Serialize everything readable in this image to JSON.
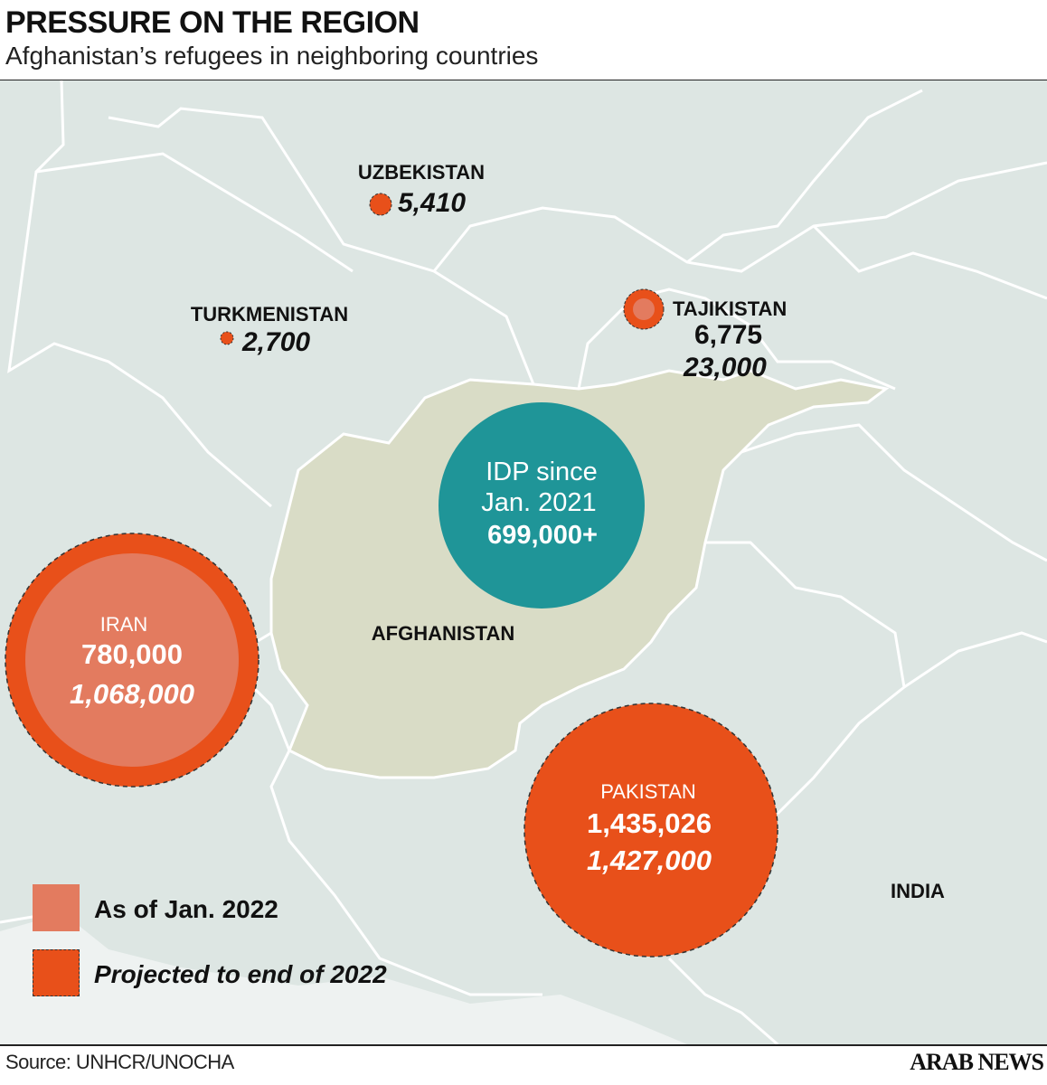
{
  "header": {
    "title": "PRESSURE ON THE REGION",
    "subtitle": "Afghanistan’s refugees in neighboring countries"
  },
  "colors": {
    "sea_land": "#dde6e3",
    "afghanistan": "#d9dcc6",
    "jan_2022": "#e37b5f",
    "projected_2022": "#e8501a",
    "idp": "#1f9598",
    "borders": "#ffffff"
  },
  "countries": {
    "uzbekistan": {
      "name": "UZBEKISTAN",
      "value": "5,410"
    },
    "turkmenistan": {
      "name": "TURKMENISTAN",
      "value": "2,700"
    },
    "tajikistan": {
      "name": "TAJIKISTAN",
      "jan_2022": "6,775",
      "projected": "23,000"
    },
    "afghanistan": {
      "name": "AFGHANISTAN",
      "idp_line1": "IDP since",
      "idp_line2": "Jan. 2021",
      "idp_value": "699,000+"
    },
    "iran": {
      "name": "IRAN",
      "jan_2022": "780,000",
      "projected": "1,068,000"
    },
    "pakistan": {
      "name": "PAKISTAN",
      "jan_2022": "1,435,026",
      "projected": "1,427,000"
    },
    "india": {
      "name": "INDIA"
    }
  },
  "legend": {
    "jan_2022": "As of Jan. 2022",
    "projected": "Projected to end of 2022"
  },
  "footer": {
    "source": "Source: UNHCR/UNOCHA",
    "logo": "ARAB NEWS"
  }
}
